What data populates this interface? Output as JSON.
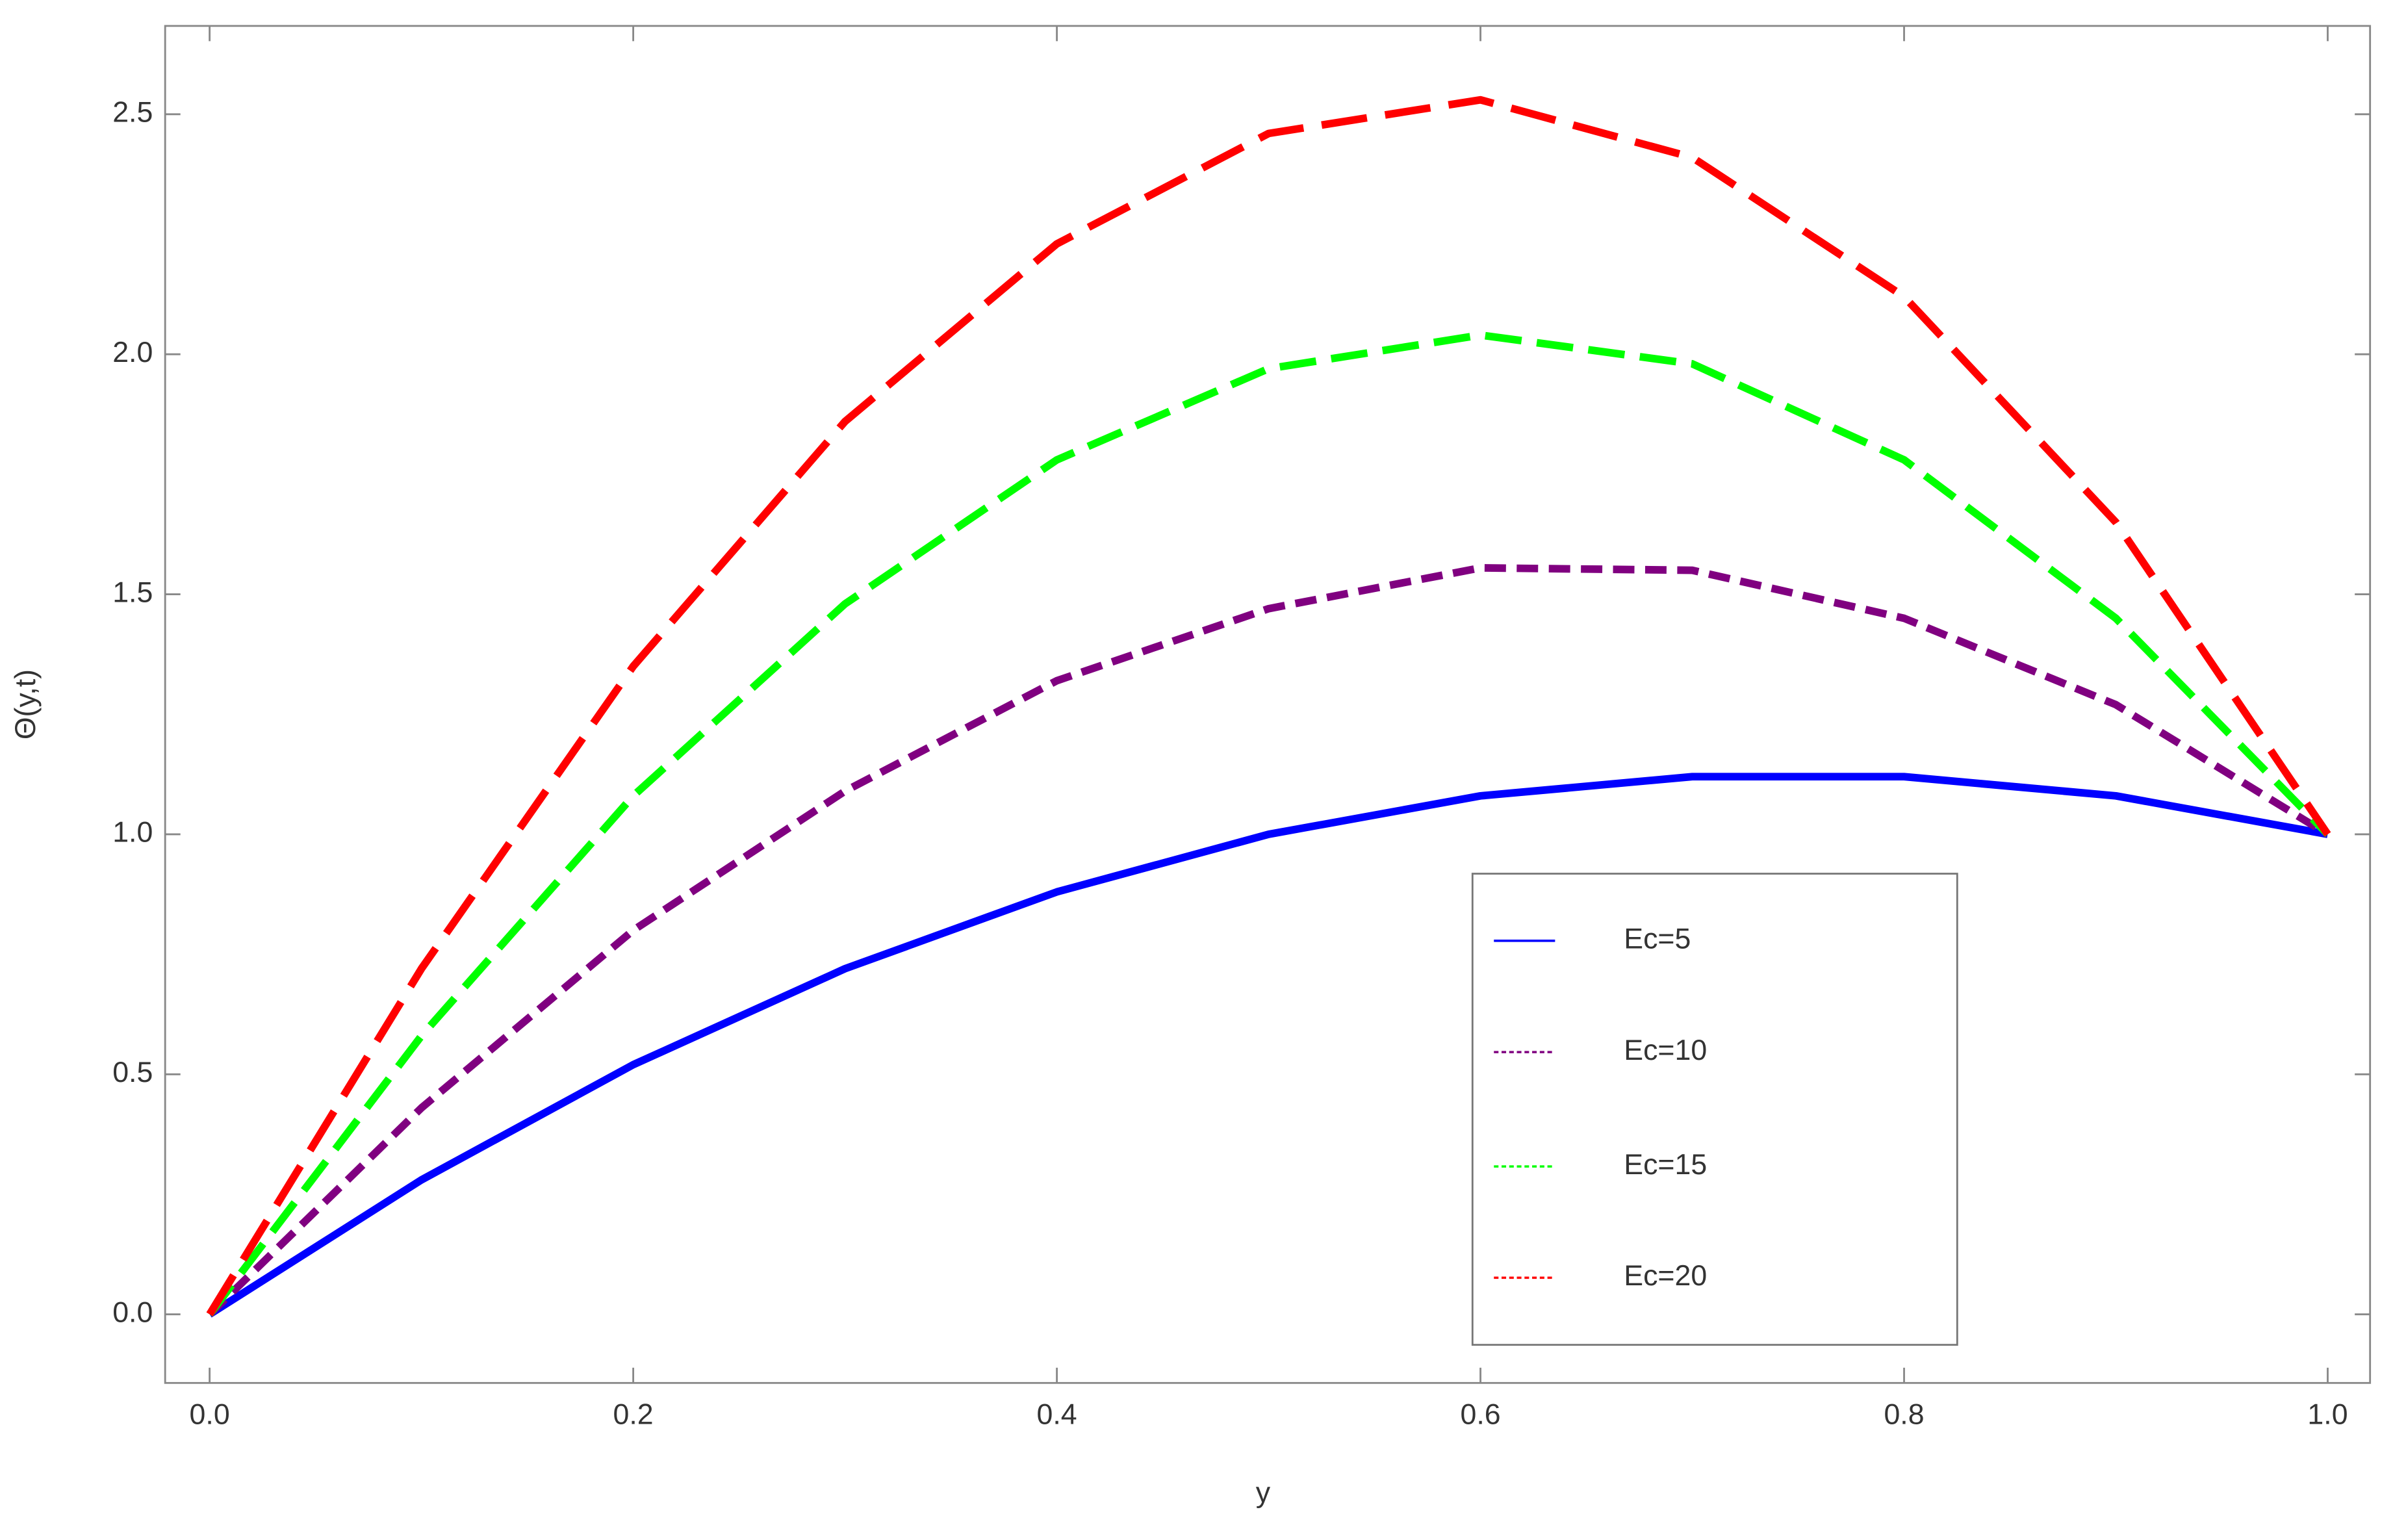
{
  "chart_data": {
    "type": "line",
    "xlabel": "y",
    "ylabel": "Θ(y,t)",
    "x": [
      0,
      0.1,
      0.2,
      0.3,
      0.4,
      0.5,
      0.6,
      0.7,
      0.8,
      0.9,
      1.0
    ],
    "series": [
      {
        "name": "Ec=5",
        "color": "#0000ff",
        "dash": "solid",
        "values": [
          0,
          0.28,
          0.52,
          0.72,
          0.88,
          1.0,
          1.08,
          1.12,
          1.12,
          1.08,
          1.0
        ]
      },
      {
        "name": "Ec=10",
        "color": "#800080",
        "dash": "short",
        "values": [
          0,
          0.43,
          0.8,
          1.09,
          1.32,
          1.47,
          1.555,
          1.55,
          1.45,
          1.27,
          1.0
        ]
      },
      {
        "name": "Ec=15",
        "color": "#00ff00",
        "dash": "medium",
        "values": [
          0,
          0.58,
          1.08,
          1.48,
          1.78,
          1.97,
          2.04,
          1.98,
          1.78,
          1.45,
          1.0
        ]
      },
      {
        "name": "Ec=20",
        "color": "#ff0000",
        "dash": "long",
        "values": [
          0,
          0.72,
          1.35,
          1.86,
          2.23,
          2.46,
          2.53,
          2.41,
          2.12,
          1.65,
          1.0
        ]
      }
    ],
    "xlim": [
      -0.021,
      1.02
    ],
    "ylim": [
      -0.143,
      2.684
    ],
    "xticks": [
      {
        "value": 0,
        "label": "0.0"
      },
      {
        "value": 0.2,
        "label": "0.2"
      },
      {
        "value": 0.4,
        "label": "0.4"
      },
      {
        "value": 0.6,
        "label": "0.6"
      },
      {
        "value": 0.8,
        "label": "0.8"
      },
      {
        "value": 1.0,
        "label": "1.0"
      }
    ],
    "yticks": [
      {
        "value": 0,
        "label": "0.0"
      },
      {
        "value": 0.5,
        "label": "0.5"
      },
      {
        "value": 1.0,
        "label": "1.0"
      },
      {
        "value": 1.5,
        "label": "1.5"
      },
      {
        "value": 2.0,
        "label": "2.0"
      },
      {
        "value": 2.5,
        "label": "2.5"
      }
    ],
    "legend": "lower right"
  }
}
